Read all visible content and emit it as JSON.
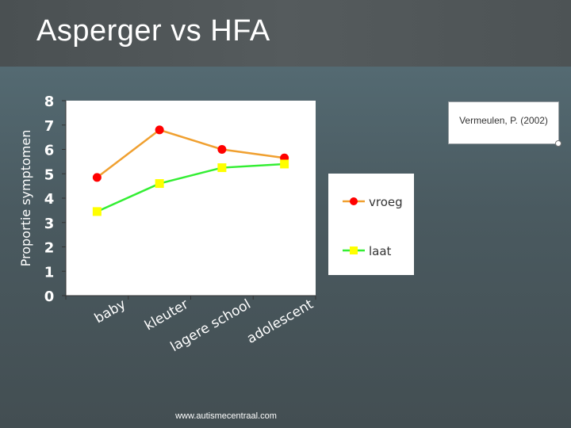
{
  "slide": {
    "title": "Asperger vs HFA",
    "citation": "Vermeulen, P. (2002)",
    "footer": "www.autismecentraal.com"
  },
  "colors": {
    "vroeg_line": "#f0a030",
    "vroeg_marker": "#ff0000",
    "laat_line": "#33ee33",
    "laat_marker": "#ffff00"
  },
  "chart_data": {
    "type": "line",
    "title": "",
    "xlabel": "",
    "ylabel": "Proportie symptomen",
    "categories": [
      "baby",
      "kleuter",
      "lagere school",
      "adolescent"
    ],
    "ylim": [
      0,
      8
    ],
    "yticks": [
      "0",
      "1",
      "2",
      "3",
      "4",
      "5",
      "6",
      "7",
      "8"
    ],
    "grid": false,
    "legend": "right",
    "series": [
      {
        "name": "vroeg",
        "values": [
          4.85,
          6.8,
          6.0,
          5.65
        ]
      },
      {
        "name": "laat",
        "values": [
          3.45,
          4.6,
          5.25,
          5.4
        ]
      }
    ]
  }
}
